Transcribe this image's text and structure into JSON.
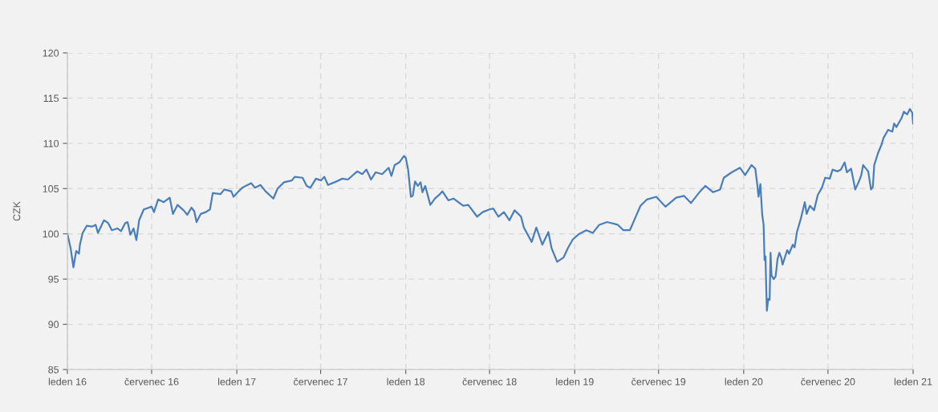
{
  "chart_data": {
    "type": "line",
    "ylabel": "CZK",
    "x": [
      "2016-01-01",
      "2016-01-08",
      "2016-01-14",
      "2016-01-20",
      "2016-01-26",
      "2016-01-28",
      "2016-02-03",
      "2016-02-12",
      "2016-02-23",
      "2016-03-02",
      "2016-03-07",
      "2016-03-20",
      "2016-03-29",
      "2016-04-06",
      "2016-04-18",
      "2016-04-26",
      "2016-05-05",
      "2016-05-10",
      "2016-05-16",
      "2016-05-23",
      "2016-05-29",
      "2016-06-04",
      "2016-06-14",
      "2016-07-01",
      "2016-07-06",
      "2016-07-15",
      "2016-07-27",
      "2016-08-09",
      "2016-08-16",
      "2016-08-26",
      "2016-09-08",
      "2016-09-16",
      "2016-09-25",
      "2016-10-01",
      "2016-10-06",
      "2016-10-15",
      "2016-10-26",
      "2016-11-04",
      "2016-11-10",
      "2016-11-27",
      "2016-12-05",
      "2016-12-20",
      "2016-12-25",
      "2017-01-03",
      "2017-01-13",
      "2017-01-20",
      "2017-02-01",
      "2017-02-09",
      "2017-02-21",
      "2017-03-04",
      "2017-03-21",
      "2017-03-30",
      "2017-04-13",
      "2017-04-30",
      "2017-05-06",
      "2017-05-23",
      "2017-06-01",
      "2017-06-09",
      "2017-06-21",
      "2017-07-02",
      "2017-07-09",
      "2017-07-17",
      "2017-07-31",
      "2017-08-17",
      "2017-08-29",
      "2017-09-18",
      "2017-09-29",
      "2017-10-08",
      "2017-10-18",
      "2017-10-28",
      "2017-11-11",
      "2017-11-25",
      "2017-12-01",
      "2017-12-08",
      "2017-12-18",
      "2017-12-28",
      "2018-01-01",
      "2018-01-06",
      "2018-01-12",
      "2018-01-16",
      "2018-01-21",
      "2018-01-27",
      "2018-02-02",
      "2018-02-06",
      "2018-02-12",
      "2018-02-23",
      "2018-03-05",
      "2018-03-14",
      "2018-03-21",
      "2018-04-03",
      "2018-04-14",
      "2018-05-05",
      "2018-05-16",
      "2018-06-04",
      "2018-06-16",
      "2018-07-01",
      "2018-07-09",
      "2018-07-20",
      "2018-08-01",
      "2018-08-13",
      "2018-08-24",
      "2018-09-07",
      "2018-09-13",
      "2018-09-30",
      "2018-10-10",
      "2018-10-23",
      "2018-11-05",
      "2018-11-12",
      "2018-11-24",
      "2018-12-08",
      "2018-12-17",
      "2018-12-28",
      "2019-01-11",
      "2019-01-26",
      "2019-02-09",
      "2019-02-23",
      "2019-03-12",
      "2019-04-04",
      "2019-04-16",
      "2019-04-30",
      "2019-05-12",
      "2019-05-23",
      "2019-06-06",
      "2019-06-26",
      "2019-07-16",
      "2019-08-08",
      "2019-08-25",
      "2019-09-09",
      "2019-09-29",
      "2019-10-10",
      "2019-10-27",
      "2019-11-11",
      "2019-11-19",
      "2019-12-06",
      "2019-12-24",
      "2020-01-04",
      "2020-01-18",
      "2020-01-26",
      "2020-01-30",
      "2020-02-02",
      "2020-02-06",
      "2020-02-10",
      "2020-02-13",
      "2020-02-15",
      "2020-02-17",
      "2020-02-20",
      "2020-02-23",
      "2020-02-26",
      "2020-02-28",
      "2020-03-01",
      "2020-03-06",
      "2020-03-10",
      "2020-03-14",
      "2020-03-18",
      "2020-03-22",
      "2020-03-25",
      "2020-04-04",
      "2020-04-08",
      "2020-04-16",
      "2020-04-20",
      "2020-04-25",
      "2020-05-03",
      "2020-05-12",
      "2020-05-16",
      "2020-05-23",
      "2020-06-01",
      "2020-06-09",
      "2020-06-18",
      "2020-06-25",
      "2020-07-05",
      "2020-07-11",
      "2020-07-22",
      "2020-07-29",
      "2020-08-06",
      "2020-08-11",
      "2020-08-20",
      "2020-08-29",
      "2020-09-06",
      "2020-09-11",
      "2020-09-15",
      "2020-09-26",
      "2020-10-02",
      "2020-10-06",
      "2020-10-09",
      "2020-10-17",
      "2020-10-25",
      "2020-10-29",
      "2020-11-08",
      "2020-11-17",
      "2020-11-21",
      "2020-11-26",
      "2020-12-07",
      "2020-12-12",
      "2020-12-19",
      "2020-12-25",
      "2020-12-30",
      "2021-01-01"
    ],
    "series": [
      {
        "color": "#4a7ebb",
        "values": [
          100.0,
          98.4,
          96.3,
          98.1,
          97.8,
          98.8,
          100.1,
          100.9,
          100.8,
          101.0,
          100.1,
          101.5,
          101.2,
          100.4,
          100.6,
          100.3,
          101.2,
          101.3,
          99.9,
          100.6,
          99.3,
          101.5,
          102.7,
          103.0,
          102.4,
          103.8,
          103.5,
          104.0,
          102.2,
          103.2,
          102.6,
          102.1,
          102.9,
          102.5,
          101.3,
          102.2,
          102.4,
          102.7,
          104.5,
          104.4,
          104.9,
          104.7,
          104.1,
          104.6,
          105.1,
          105.3,
          105.6,
          105.1,
          105.4,
          104.7,
          103.9,
          105.0,
          105.7,
          105.9,
          106.3,
          106.2,
          105.3,
          105.1,
          106.1,
          105.9,
          106.3,
          105.4,
          105.7,
          106.1,
          106.0,
          106.9,
          106.6,
          107.1,
          106.0,
          106.8,
          106.6,
          107.3,
          106.4,
          107.6,
          107.9,
          108.6,
          108.4,
          107.1,
          104.1,
          104.2,
          105.8,
          105.3,
          105.7,
          104.6,
          105.3,
          103.2,
          103.9,
          104.3,
          104.7,
          103.7,
          103.9,
          103.1,
          103.2,
          101.9,
          102.4,
          102.7,
          102.8,
          101.9,
          102.4,
          101.5,
          102.6,
          101.9,
          100.7,
          99.1,
          100.7,
          98.8,
          100.2,
          98.4,
          96.9,
          97.4,
          98.4,
          99.4,
          100.0,
          100.4,
          100.1,
          101.0,
          101.3,
          101.0,
          100.4,
          100.4,
          101.8,
          103.1,
          103.8,
          104.1,
          103.0,
          104.0,
          104.2,
          103.4,
          104.7,
          105.3,
          104.6,
          104.9,
          106.2,
          106.8,
          107.3,
          106.5,
          107.6,
          107.2,
          105.6,
          104.1,
          105.5,
          102.1,
          101.0,
          97.1,
          97.5,
          91.5,
          92.8,
          92.7,
          97.9,
          95.4,
          95.0,
          95.3,
          97.2,
          97.9,
          97.4,
          96.6,
          98.2,
          97.8,
          98.8,
          98.5,
          100.2,
          101.6,
          103.5,
          102.2,
          103.1,
          102.6,
          104.3,
          105.1,
          106.2,
          106.1,
          107.1,
          106.9,
          107.1,
          107.9,
          106.8,
          107.2,
          104.9,
          105.8,
          106.5,
          107.6,
          106.9,
          104.9,
          105.2,
          107.6,
          108.9,
          109.9,
          110.6,
          111.5,
          111.3,
          112.2,
          111.8,
          112.8,
          113.5,
          113.2,
          113.8,
          113.4,
          112.2
        ]
      }
    ],
    "xlim": [
      "2016-01-01",
      "2021-01-01"
    ],
    "xticks": [
      {
        "value": "2016-01-01",
        "label": "leden 16"
      },
      {
        "value": "2016-07-01",
        "label": "červenec 16"
      },
      {
        "value": "2017-01-01",
        "label": "leden 17"
      },
      {
        "value": "2017-07-01",
        "label": "červenec 17"
      },
      {
        "value": "2018-01-01",
        "label": "leden 18"
      },
      {
        "value": "2018-07-01",
        "label": "červenec 18"
      },
      {
        "value": "2019-01-01",
        "label": "leden 19"
      },
      {
        "value": "2019-07-01",
        "label": "červenec 19"
      },
      {
        "value": "2020-01-01",
        "label": "leden 20"
      },
      {
        "value": "2020-07-01",
        "label": "červenec 20"
      },
      {
        "value": "2021-01-01",
        "label": "leden 21"
      }
    ],
    "ylim": [
      85,
      120
    ],
    "yticks": [
      85,
      90,
      95,
      100,
      105,
      110,
      115,
      120
    ],
    "grid": true,
    "line_style": "solid",
    "marker": "none"
  }
}
